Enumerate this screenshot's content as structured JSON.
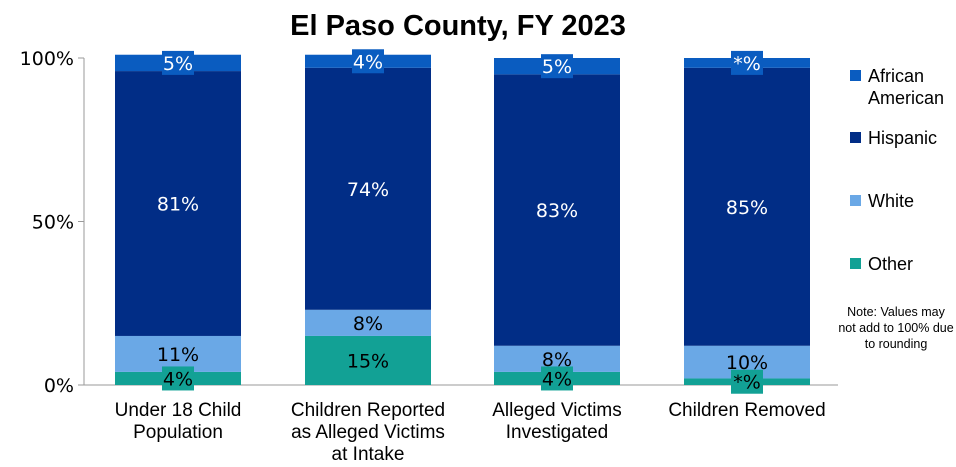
{
  "chart_data": {
    "type": "bar",
    "stacked": true,
    "title": "El Paso County, FY 2023",
    "categories": [
      [
        "Under 18 Child",
        "Population"
      ],
      [
        "Children Reported",
        "as Alleged Victims",
        "at Intake"
      ],
      [
        "Alleged Victims",
        "Investigated"
      ],
      [
        "Children Removed"
      ]
    ],
    "series": [
      {
        "name": "Other",
        "color": "#12a195",
        "values": [
          4,
          15,
          4,
          2
        ],
        "labels": [
          "4%",
          "15%",
          "4%",
          "*%"
        ]
      },
      {
        "name": "White",
        "color": "#6aa8e6",
        "values": [
          11,
          8,
          8,
          10
        ],
        "labels": [
          "11%",
          "8%",
          "8%",
          "10%"
        ]
      },
      {
        "name": "Hispanic",
        "color": "#012d86",
        "values": [
          81,
          74,
          83,
          85
        ],
        "labels": [
          "81%",
          "74%",
          "83%",
          "85%"
        ]
      },
      {
        "name": "African American",
        "color": "#0a5cc0",
        "values": [
          5,
          4,
          5,
          3
        ],
        "labels": [
          "5%",
          "4%",
          "5%",
          "*%"
        ]
      }
    ],
    "legend_order": [
      "African American",
      "Hispanic",
      "White",
      "Other"
    ],
    "legend_placement": "right",
    "yticks": [
      "0%",
      "50%",
      "100%"
    ],
    "ylim": [
      0,
      100
    ],
    "grid": false
  },
  "note": "Note: Values may not add to 100% due to rounding"
}
